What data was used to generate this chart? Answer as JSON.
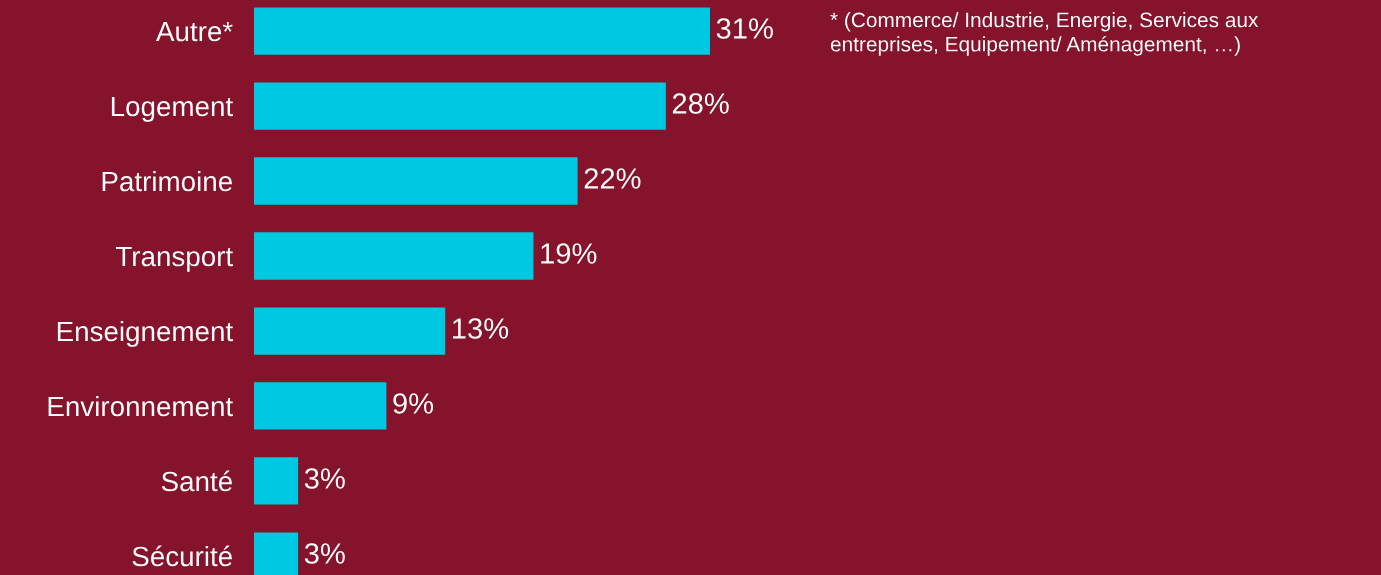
{
  "chart_data": {
    "type": "bar",
    "orientation": "horizontal",
    "categories": [
      "Autre*",
      "Logement",
      "Patrimoine",
      "Transport",
      "Enseignement",
      "Environnement",
      "Santé",
      "Sécurité"
    ],
    "values": [
      31,
      28,
      22,
      19,
      13,
      9,
      3,
      3
    ],
    "value_labels": [
      "31%",
      "28%",
      "22%",
      "19%",
      "13%",
      "9%",
      "3%",
      "3%"
    ],
    "color": "#00c8e0",
    "annotations": [
      "* (Commerce/ Industrie, Energie, Services aux\nentreprises, Equipement/ Aménagement, …)"
    ]
  }
}
